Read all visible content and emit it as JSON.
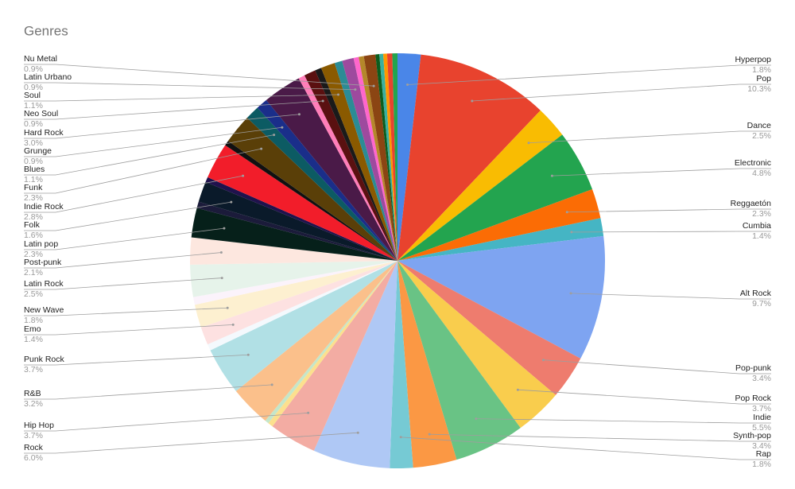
{
  "chart_data": {
    "type": "pie",
    "title": "Genres",
    "categories": [
      "Hyperpop",
      "Pop",
      "Dance",
      "Electronic",
      "Reggaetón",
      "Cumbia",
      "Alt Rock",
      "Pop-punk",
      "Pop Rock",
      "Indie",
      "Synth-pop",
      "Rap",
      "Rock",
      "Hip Hop",
      null,
      null,
      "R&B",
      "Punk Rock",
      null,
      "Emo",
      "New Wave",
      null,
      "Latin Rock",
      "Post-punk",
      "Latin pop",
      null,
      "Folk",
      null,
      "Indie Rock",
      null,
      "Funk",
      "Blues",
      "Grunge",
      "Hard Rock",
      null,
      "Neo Soul",
      null,
      "Soul",
      null,
      "Latin Urbano",
      null,
      null,
      "Nu Metal",
      null,
      null,
      null,
      null,
      null
    ],
    "values": [
      1.8,
      10.3,
      2.5,
      4.8,
      2.3,
      1.4,
      9.7,
      3.4,
      3.7,
      5.5,
      3.4,
      1.8,
      6.0,
      3.7,
      0.4,
      0.3,
      3.2,
      3.7,
      0.5,
      1.4,
      1.8,
      0.6,
      2.5,
      2.1,
      2.3,
      0.5,
      1.6,
      0.4,
      2.8,
      0.4,
      2.3,
      1.1,
      0.9,
      3.0,
      0.5,
      0.9,
      0.5,
      1.1,
      0.6,
      0.9,
      0.4,
      0.4,
      0.9,
      0.3,
      0.3,
      0.3,
      0.4,
      0.4
    ],
    "value_labels": [
      "1.8%",
      "10.3%",
      "2.5%",
      "4.8%",
      "2.3%",
      "1.4%",
      "9.7%",
      "3.4%",
      "3.7%",
      "5.5%",
      "3.4%",
      "1.8%",
      "6.0%",
      "3.7%",
      null,
      null,
      "3.2%",
      "3.7%",
      null,
      "1.4%",
      "1.8%",
      null,
      "2.5%",
      "2.1%",
      "2.3%",
      null,
      "1.6%",
      null,
      "2.8%",
      null,
      "2.3%",
      "1.1%",
      "0.9%",
      "3.0%",
      null,
      "0.9%",
      null,
      "1.1%",
      null,
      "0.9%",
      null,
      null,
      "0.9%",
      null,
      null,
      null,
      null,
      null
    ],
    "colors": [
      "#4a86e8",
      "#e8432e",
      "#f9bc02",
      "#23a44f",
      "#fb6c05",
      "#45b5c4",
      "#7ea4f1",
      "#ee7c6e",
      "#f9cd4d",
      "#69c385",
      "#fb9844",
      "#76cad4",
      "#afc8f5",
      "#f3aca3",
      "#fce08e",
      "#c5e6c9",
      "#fbc08b",
      "#b1e0e5",
      "#f4f9fd",
      "#fde1e1",
      "#fdf0d0",
      "#fbf3fb",
      "#e6f3ea",
      "#fde7df",
      "#06201a",
      "#1b1b3a",
      "#0a1a2a",
      "#20124d",
      "#f21d2a",
      "#111111",
      "#5a3f08",
      "#0c5b63",
      "#1a2e8a",
      "#4a1a48",
      "#ff7eb9",
      "#5a1010",
      "#1a1a1a",
      "#8a5a00",
      "#2b8c95",
      "#9e4a9e",
      "#ff66cc",
      "#b5882a",
      "#8b4513",
      "#0b5d1e",
      "#3ab0a0",
      "#ff9800",
      "#e8432e",
      "#23a44f"
    ]
  }
}
